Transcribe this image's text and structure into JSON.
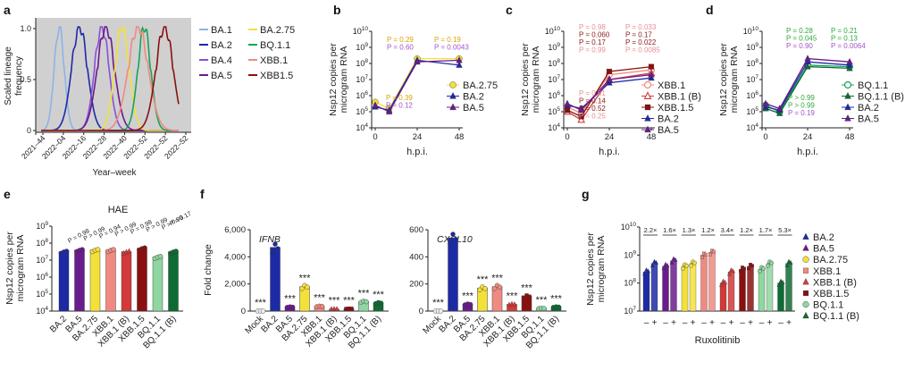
{
  "colors": {
    "BA.1": "#8ab4e8",
    "BA.2": "#1d2aa6",
    "BA.4": "#8a4fd6",
    "BA.5": "#6a1b8c",
    "BA.2.75": "#f3e03b",
    "BQ.1.1": "#17a35a",
    "XBB.1": "#f08a80",
    "XBB1.5": "#8a1010",
    "XBB.1.5": "#8a1010",
    "BQ.1.1 (B)": "#0e6b34",
    "XBB.1 (B)": "#d23a3a",
    "Mock": "#999999",
    "pval_blue": "#6a6ad8",
    "pval_purple": "#a354c8",
    "pval_gold": "#d9a400",
    "pval_green": "#2fa83a",
    "pval_pink": "#e88e94",
    "pval_darkred": "#8a1a1a"
  },
  "panels": {
    "a": "a",
    "b": "b",
    "c": "c",
    "d": "d",
    "e": "e",
    "f": "f",
    "g": "g"
  },
  "chart_data": [
    {
      "id": "a",
      "type": "line",
      "ylabel": "Scaled lineage frequency",
      "xlabel": "Year–week",
      "yticks": [
        "0",
        "0.5",
        "1.0"
      ],
      "xticks": [
        "2021–44",
        "2022–04",
        "2022–16",
        "2022–28",
        "2022–40",
        "2022–52",
        "2022–52",
        "2022–52"
      ],
      "series": [
        {
          "name": "BA.1",
          "peak": 0.9,
          "width": 0.35
        },
        {
          "name": "BA.2",
          "peak": 1.9,
          "width": 0.55
        },
        {
          "name": "BA.4",
          "peak": 3.0,
          "width": 0.5
        },
        {
          "name": "BA.5",
          "peak": 3.2,
          "width": 0.6
        },
        {
          "name": "BA.2.75",
          "peak": 4.0,
          "width": 0.5
        },
        {
          "name": "BQ.1.1",
          "peak": 5.1,
          "width": 0.45
        },
        {
          "name": "XBB.1",
          "peak": 4.8,
          "width": 0.7
        },
        {
          "name": "XBB1.5",
          "peak": 6.1,
          "width": 0.6
        }
      ],
      "legend": [
        "BA.1",
        "BA.2.75",
        "BA.2",
        "BQ.1.1",
        "BA.4",
        "XBB.1",
        "BA.5",
        "XBB1.5"
      ]
    },
    {
      "id": "b",
      "type": "line",
      "ylabel": "Nsp12 copies per microgram RNA",
      "xlabel": "h.p.i.",
      "ylim": [
        4,
        10
      ],
      "yticks_exp": [
        4,
        5,
        6,
        7,
        8,
        9,
        10
      ],
      "x": [
        0,
        8,
        24,
        48
      ],
      "series": [
        {
          "name": "BA.2.75",
          "values": [
            5.6,
            5.2,
            8.3,
            8.3
          ]
        },
        {
          "name": "BA.2",
          "values": [
            5.3,
            5.1,
            8.2,
            7.9
          ]
        },
        {
          "name": "BA.5",
          "values": [
            5.4,
            5.0,
            8.1,
            8.2
          ]
        }
      ],
      "annotations": {
        "top": [
          [
            "P = 0.29",
            "P = 0.60"
          ],
          [
            "P = 0.19",
            "P = 0.0043"
          ]
        ],
        "bottom": [
          "P = 0.39",
          "P = 0.12"
        ]
      }
    },
    {
      "id": "c",
      "type": "line",
      "ylabel": "Nsp12 copies per microgram RNA",
      "xlabel": "h.p.i.",
      "ylim": [
        4,
        10
      ],
      "yticks_exp": [
        4,
        5,
        6,
        7,
        8,
        9,
        10
      ],
      "x": [
        0,
        8,
        24,
        48
      ],
      "series": [
        {
          "name": "XBB.1",
          "values": [
            5.3,
            4.9,
            7.3,
            7.6
          ]
        },
        {
          "name": "XBB.1 (B)",
          "values": [
            5.0,
            4.5,
            7.0,
            7.4
          ]
        },
        {
          "name": "XBB.1.5",
          "values": [
            5.1,
            4.7,
            7.5,
            7.8
          ]
        },
        {
          "name": "BA.2",
          "values": [
            5.4,
            5.2,
            6.8,
            7.1
          ]
        },
        {
          "name": "BA.5",
          "values": [
            5.5,
            5.1,
            7.0,
            7.3
          ]
        }
      ],
      "annotations": {
        "top": [
          [
            "P = 0.98",
            "P = 0.060",
            "P = 0.17",
            "P = 0.99"
          ],
          [
            "P = 0.033",
            "P = 0.17",
            "P = 0.022",
            "P = 0.0085"
          ]
        ],
        "bottom": [
          "P = 0.61",
          "P = 0.14",
          "P = 0.52",
          "P = 0.25"
        ]
      }
    },
    {
      "id": "d",
      "type": "line",
      "ylabel": "Nsp12 copies per microgram RNA",
      "xlabel": "h.p.i.",
      "ylim": [
        4,
        10
      ],
      "yticks_exp": [
        4,
        5,
        6,
        7,
        8,
        9,
        10
      ],
      "x": [
        0,
        8,
        24,
        48
      ],
      "series": [
        {
          "name": "BQ.1.1",
          "values": [
            5.4,
            5.0,
            7.9,
            7.8
          ]
        },
        {
          "name": "BQ.1.1 (B)",
          "values": [
            5.2,
            4.9,
            7.8,
            7.7
          ]
        },
        {
          "name": "BA.2",
          "values": [
            5.3,
            5.1,
            8.1,
            7.9
          ]
        },
        {
          "name": "BA.5",
          "values": [
            5.5,
            5.2,
            8.3,
            8.1
          ]
        }
      ],
      "annotations": {
        "top": [
          [
            "P = 0.28",
            "P = 0.045",
            "P = 0.90"
          ],
          [
            "P = 0.21",
            "P = 0.13",
            "P = 0.0064"
          ]
        ],
        "bottom": [
          "P > 0.99",
          "P > 0.99",
          "P = 0.19"
        ]
      }
    },
    {
      "id": "e",
      "type": "bar",
      "title": "HAE",
      "ylabel": "Nsp12 copies per microgram RNA",
      "ylim": [
        4,
        9
      ],
      "yticks_exp": [
        4,
        5,
        6,
        7,
        8,
        9
      ],
      "categories": [
        "BA.2",
        "BA.5",
        "BA.2.75",
        "XBB.1",
        "XBB.1 (B)",
        "XBB.1.5",
        "BQ.1.1",
        "BQ.1.1 (B)"
      ],
      "values": [
        7.5,
        7.6,
        7.6,
        7.6,
        7.5,
        7.7,
        7.2,
        7.5
      ],
      "pvals": [
        "P = 0.98",
        "P > 0.99",
        "P = 0.94",
        "P > 0.99",
        "P = 0.98",
        "P > 0.99",
        "P > 0.99",
        "P = 0.17"
      ]
    },
    {
      "id": "f1",
      "type": "bar",
      "title": "IFNB",
      "ylabel": "Fold change",
      "ylim": [
        0,
        6000
      ],
      "yticks": [
        "0",
        "2,000",
        "4,000",
        "6,000"
      ],
      "categories": [
        "Mock",
        "BA.2",
        "BA.5",
        "BA.2.75",
        "XBB.1",
        "XBB.1 (B)",
        "XBB.1.5",
        "BQ.1.1",
        "BQ.1.1 (B)"
      ],
      "values": [
        0,
        4700,
        300,
        1800,
        350,
        150,
        180,
        700,
        600
      ],
      "stars": [
        "***",
        "",
        "***",
        "***",
        "***",
        "***",
        "***",
        "***",
        "***"
      ]
    },
    {
      "id": "f2",
      "type": "bar",
      "title": "CXCL10",
      "ylim": [
        0,
        600
      ],
      "yticks": [
        "0",
        "200",
        "400",
        "600"
      ],
      "categories": [
        "Mock",
        "BA.2",
        "BA.5",
        "BA.2.75",
        "XBB.1",
        "XBB.1 (B)",
        "XBB.1.5",
        "BQ.1.1",
        "BQ.1.1 (B)"
      ],
      "values": [
        0,
        540,
        50,
        170,
        180,
        50,
        110,
        20,
        30
      ],
      "stars": [
        "***",
        "",
        "***",
        "***",
        "***",
        "***",
        "***",
        "***",
        "***"
      ]
    },
    {
      "id": "g",
      "type": "bar",
      "ylabel": "Nsp12 copies per microgram RNA",
      "xlabel": "Ruxolitinib",
      "ylim": [
        7,
        10
      ],
      "yticks_exp": [
        7,
        8,
        9,
        10
      ],
      "categories": [
        "BA.2",
        "BA.5",
        "BA.2.75",
        "XBB.1",
        "XBB.1 (B)",
        "XBB.1.5",
        "BQ.1.1",
        "BQ.1.1 (B)"
      ],
      "minus": [
        8.4,
        8.6,
        8.6,
        9.0,
        8.0,
        8.5,
        8.5,
        8.0
      ],
      "plus": [
        8.7,
        8.8,
        8.7,
        9.1,
        8.4,
        8.6,
        8.7,
        8.7
      ],
      "fold": [
        "2.2×",
        "1.6×",
        "1.3×",
        "1.2×",
        "3.4×",
        "1.2×",
        "1.7×",
        "5.3×"
      ],
      "xsigns": [
        "–",
        "+"
      ],
      "legend": [
        "BA.2",
        "BA.5",
        "BA.2.75",
        "XBB.1",
        "XBB.1 (B)",
        "XBB.1.5",
        "BQ.1.1",
        "BQ.1.1 (B)"
      ]
    }
  ]
}
